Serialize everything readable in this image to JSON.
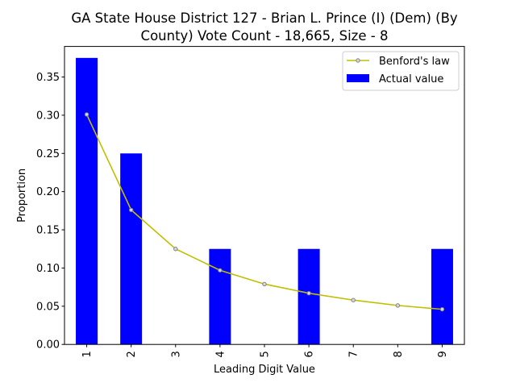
{
  "chart_data": {
    "type": "bar",
    "title_lines": [
      "GA State House District 127 - Brian L. Prince (I) (Dem) (By",
      "County) Vote Count - 18,665, Size - 8"
    ],
    "xlabel": "Leading Digit Value",
    "ylabel": "Proportion",
    "categories": [
      "1",
      "2",
      "3",
      "4",
      "5",
      "6",
      "7",
      "8",
      "9"
    ],
    "ylim": [
      0,
      0.39
    ],
    "yticks": [
      "0.00",
      "0.05",
      "0.10",
      "0.15",
      "0.20",
      "0.25",
      "0.30",
      "0.35"
    ],
    "legend_position": "upper right",
    "series": [
      {
        "name": "Benford's law",
        "kind": "line",
        "color": "#bfbf00",
        "values": [
          0.301,
          0.176,
          0.125,
          0.097,
          0.079,
          0.067,
          0.058,
          0.051,
          0.046
        ]
      },
      {
        "name": "Actual value",
        "kind": "bar",
        "color": "#0000ff",
        "values": [
          0.375,
          0.25,
          0,
          0.125,
          0,
          0.125,
          0,
          0,
          0.125
        ]
      }
    ]
  }
}
